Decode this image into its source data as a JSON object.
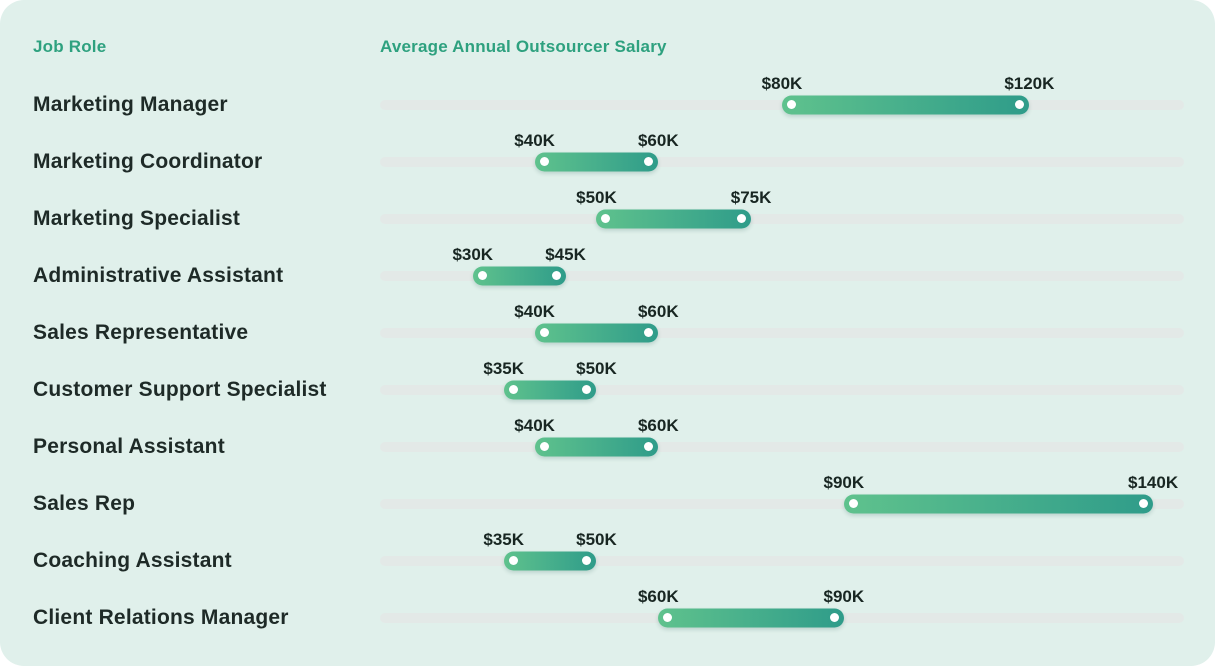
{
  "headers": {
    "job_role": "Job Role",
    "salary": "Average Annual Outsourcer Salary"
  },
  "colors": {
    "card_bg": "#e0f0eb",
    "track": "#e3e9e7",
    "bar_gradient_start": "#5fc28d",
    "bar_gradient_end": "#2f9c8a",
    "header_text": "#2ea17f",
    "job_text": "#1e2a27",
    "value_text": "#182622",
    "endpoint_dot": "#ffffff"
  },
  "chart_data": {
    "type": "bar",
    "variant": "dumbbell-range",
    "title": "Average Annual Outsourcer Salary",
    "categories": [
      "Marketing Manager",
      "Marketing Coordinator",
      "Marketing Specialist",
      "Administrative Assistant",
      "Sales Representative",
      "Customer Support Specialist",
      "Personal Assistant",
      "Sales Rep",
      "Coaching Assistant",
      "Client Relations Manager"
    ],
    "series": [
      {
        "name": "Salary range start ($K)",
        "values": [
          80,
          40,
          50,
          30,
          40,
          35,
          40,
          90,
          35,
          60
        ],
        "labels": [
          "$80K",
          "$40K",
          "$50K",
          "$30K",
          "$40K",
          "$35K",
          "$40K",
          "$90K",
          "$35K",
          "$60K"
        ]
      },
      {
        "name": "Salary range end ($K)",
        "values": [
          120,
          60,
          75,
          45,
          60,
          50,
          60,
          140,
          50,
          90
        ],
        "labels": [
          "$120K",
          "$60K",
          "$75K",
          "$45K",
          "$60K",
          "$50K",
          "$60K",
          "$140K",
          "$50K",
          "$90K"
        ]
      }
    ],
    "axis": {
      "unit": "USD thousands per year",
      "range_k": [
        15,
        145
      ],
      "tick_labels_visible": false,
      "grid": false
    },
    "legend_position": "none"
  }
}
